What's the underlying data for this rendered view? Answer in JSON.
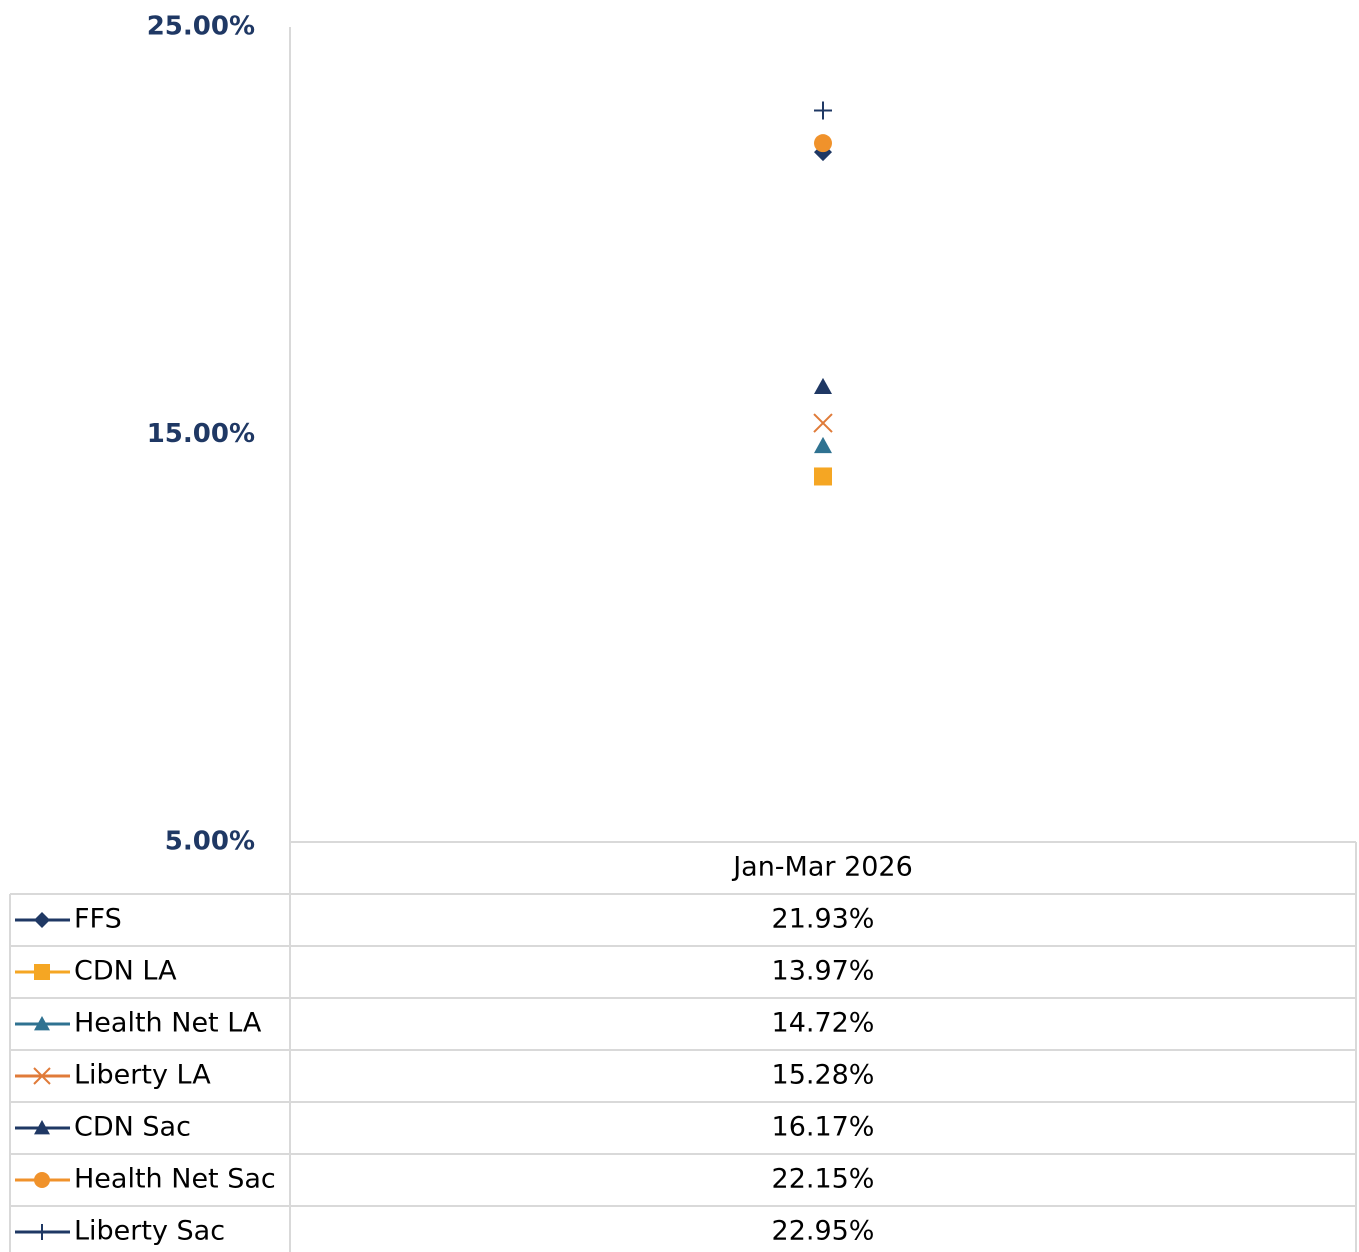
{
  "chart_data": {
    "type": "line",
    "categories": [
      "Jan-Mar 2026"
    ],
    "ylim": [
      5,
      25
    ],
    "yticks": [
      {
        "value": 5,
        "label": "5.00%"
      },
      {
        "value": 15,
        "label": "15.00%"
      },
      {
        "value": 25,
        "label": "25.00%"
      }
    ],
    "series": [
      {
        "name": "FFS",
        "color": "#1f3864",
        "marker": "diamond",
        "values": [
          21.93
        ],
        "value_labels": [
          "21.93%"
        ]
      },
      {
        "name": "CDN LA",
        "color": "#f5a623",
        "marker": "square",
        "values": [
          13.97
        ],
        "value_labels": [
          "13.97%"
        ]
      },
      {
        "name": "Health Net LA",
        "color": "#2f7291",
        "marker": "triangle",
        "values": [
          14.72
        ],
        "value_labels": [
          "14.72%"
        ]
      },
      {
        "name": "Liberty LA",
        "color": "#e07b39",
        "marker": "x",
        "values": [
          15.28
        ],
        "value_labels": [
          "15.28%"
        ]
      },
      {
        "name": "CDN Sac",
        "color": "#1f3864",
        "marker": "triangle",
        "values": [
          16.17
        ],
        "value_labels": [
          "16.17%"
        ]
      },
      {
        "name": "Health Net Sac",
        "color": "#f0922b",
        "marker": "circle",
        "values": [
          22.15
        ],
        "value_labels": [
          "22.15%"
        ]
      },
      {
        "name": "Liberty Sac",
        "color": "#1f3864",
        "marker": "plus",
        "values": [
          22.95
        ],
        "value_labels": [
          "22.95%"
        ]
      }
    ]
  }
}
